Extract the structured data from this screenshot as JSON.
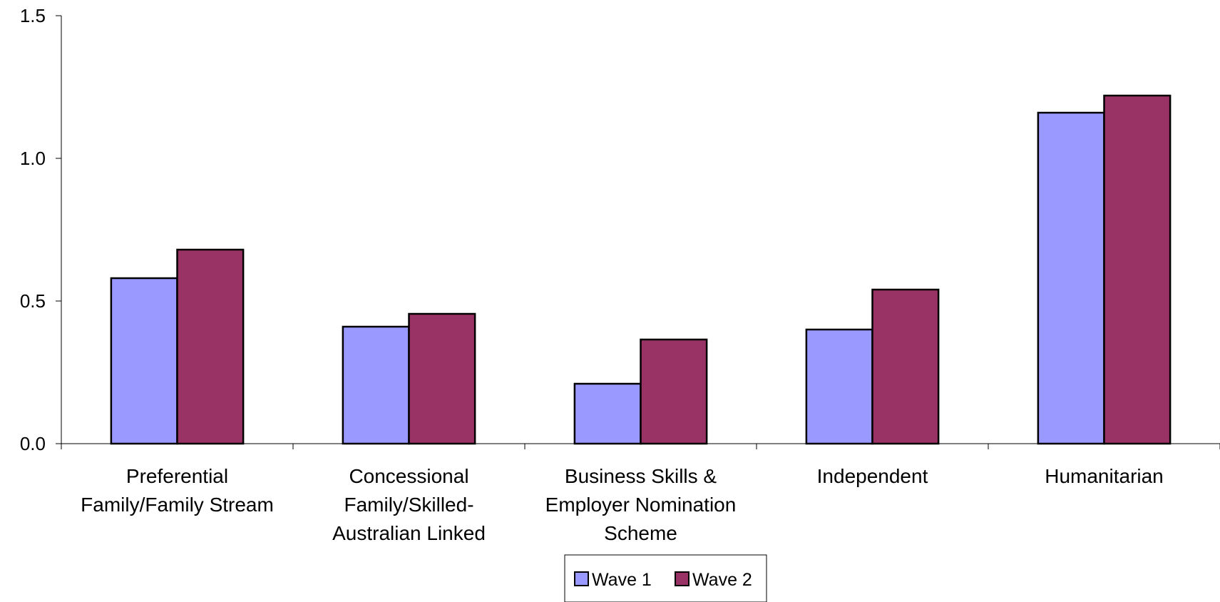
{
  "chart_data": {
    "type": "bar",
    "categories": [
      [
        "Preferential",
        "Family/Family Stream"
      ],
      [
        "Concessional",
        "Family/Skilled-",
        "Australian Linked"
      ],
      [
        "Business Skills &",
        "Employer Nomination",
        "Scheme"
      ],
      [
        "Independent"
      ],
      [
        "Humanitarian"
      ]
    ],
    "series": [
      {
        "name": "Wave 1",
        "color": "#9999ff",
        "values": [
          0.58,
          0.41,
          0.21,
          0.4,
          1.16
        ]
      },
      {
        "name": "Wave 2",
        "color": "#993366",
        "values": [
          0.68,
          0.455,
          0.365,
          0.54,
          1.22
        ]
      }
    ],
    "y_ticks": [
      "0.0",
      "0.5",
      "1.0",
      "1.5"
    ],
    "ylim": [
      0,
      1.5
    ],
    "grid": false,
    "legend_position": "bottom-center"
  }
}
